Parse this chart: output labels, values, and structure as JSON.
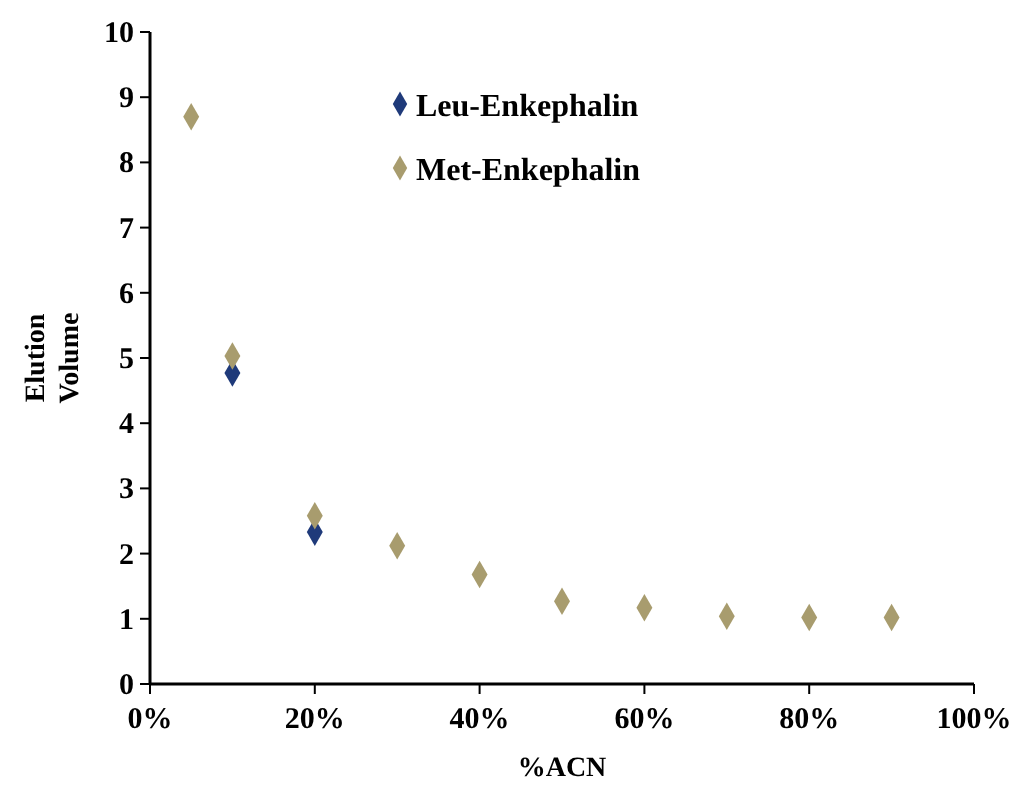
{
  "chart_data": {
    "type": "scatter",
    "xlabel": "%ACN",
    "ylabel": "Elution Volume",
    "xlim": [
      0,
      100
    ],
    "ylim": [
      0,
      10
    ],
    "xticks": [
      {
        "value": 0,
        "label": "0%"
      },
      {
        "value": 20,
        "label": "20%"
      },
      {
        "value": 40,
        "label": "40%"
      },
      {
        "value": 60,
        "label": "60%"
      },
      {
        "value": 80,
        "label": "80%"
      },
      {
        "value": 100,
        "label": "100%"
      }
    ],
    "yticks": [
      0,
      1,
      2,
      3,
      4,
      5,
      6,
      7,
      8,
      9,
      10
    ],
    "marker": "diamond",
    "legend": "top",
    "grid": false,
    "series": [
      {
        "name": "Leu-Enkephalin",
        "color": "#1f3a7a",
        "x": [
          10,
          20
        ],
        "values": [
          4.77,
          2.33
        ]
      },
      {
        "name": "Met-Enkephalin",
        "color": "#a89c6e",
        "x": [
          5,
          10,
          20,
          30,
          40,
          50,
          60,
          70,
          80,
          90
        ],
        "values": [
          8.7,
          5.03,
          2.58,
          2.12,
          1.68,
          1.27,
          1.17,
          1.04,
          1.02,
          1.02
        ]
      }
    ]
  }
}
